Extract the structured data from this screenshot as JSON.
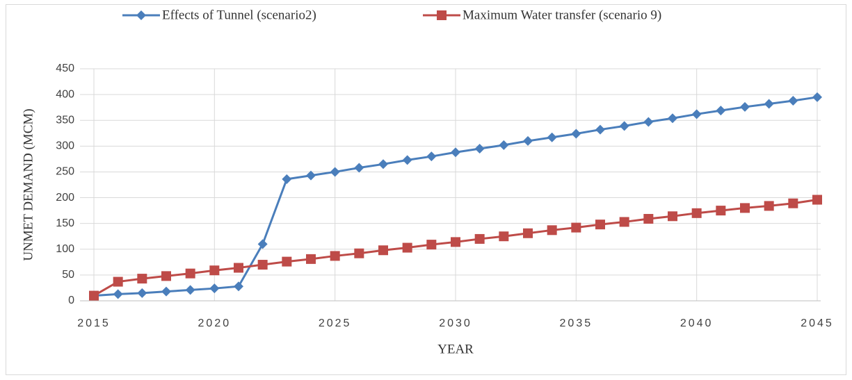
{
  "chart_data": {
    "type": "line",
    "x_label": "YEAR",
    "y_label": "UNMET DEMAND (MCM)",
    "x": [
      2015,
      2016,
      2017,
      2018,
      2019,
      2020,
      2021,
      2022,
      2023,
      2024,
      2025,
      2026,
      2027,
      2028,
      2029,
      2030,
      2031,
      2032,
      2033,
      2034,
      2035,
      2036,
      2037,
      2038,
      2039,
      2040,
      2041,
      2042,
      2043,
      2044,
      2045
    ],
    "series": [
      {
        "name": "Effects of Tunnel (scenario2)",
        "color": "#4a7ebb",
        "marker": "diamond",
        "values": [
          10,
          13,
          15,
          18,
          21,
          24,
          28,
          110,
          236,
          243,
          250,
          258,
          265,
          273,
          280,
          288,
          295,
          302,
          310,
          317,
          324,
          332,
          339,
          347,
          354,
          362,
          369,
          376,
          382,
          388,
          395
        ]
      },
      {
        "name": "Maximum Water transfer (scenario 9)",
        "color": "#be4b48",
        "marker": "square",
        "values": [
          10,
          37,
          43,
          48,
          53,
          59,
          64,
          70,
          76,
          81,
          87,
          92,
          98,
          103,
          109,
          114,
          120,
          125,
          131,
          137,
          142,
          148,
          153,
          159,
          164,
          170,
          175,
          180,
          184,
          189,
          196
        ]
      }
    ],
    "xlim": [
      2015,
      2045
    ],
    "xticks": [
      2015,
      2020,
      2025,
      2030,
      2035,
      2040,
      2045
    ],
    "ylim": [
      0,
      450
    ],
    "yticks": [
      0,
      50,
      100,
      150,
      200,
      250,
      300,
      350,
      400,
      450
    ],
    "grid": true,
    "legend": "top"
  }
}
